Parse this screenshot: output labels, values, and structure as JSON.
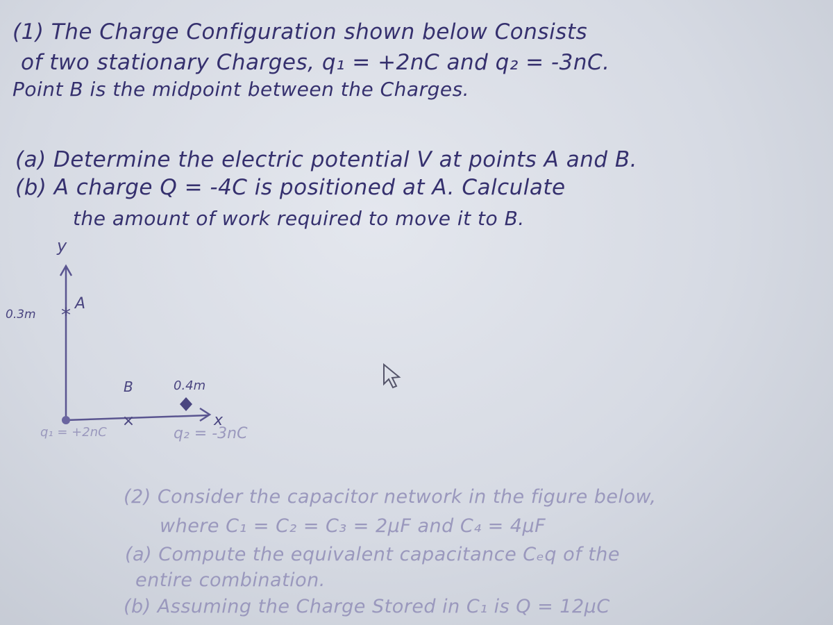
{
  "problems": [
    {
      "lines": [
        "(1) The Charge Configuration shown below Consists",
        "of two stationary Charges, q₁ = +2nC and q₂ = -3nC.",
        "Point B is the midpoint between the Charges.",
        "(a) Determine the electric potential V at points A and B.",
        "(b) A charge Q = -4C is positioned at A. Calculate",
        "the amount of work required to move it to B."
      ]
    },
    {
      "lines": [
        "(2) Consider the capacitor network in the figure below,",
        "where C₁ = C₂ = C₃ = 2μF and C₄ = 4μF",
        "(a) Compute the equivalent capacitance Cₑq of the",
        "entire combination.",
        "(b) Assuming the Charge Stored in C₁ is Q = 12μC"
      ]
    }
  ],
  "diagram": {
    "y_label": "y",
    "height_label": "0.3m",
    "point_a": "A",
    "point_b": "B",
    "width_label": "0.4m",
    "x_label": "x",
    "q1_label": "q₁ = +2nC",
    "q2_label": "q₂ = -3nC"
  }
}
